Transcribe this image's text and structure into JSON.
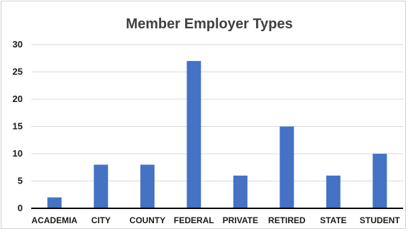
{
  "chart_data": {
    "type": "bar",
    "title": "Member Employer Types",
    "xlabel": "",
    "ylabel": "",
    "categories": [
      "ACADEMIA",
      "CITY",
      "COUNTY",
      "FEDERAL",
      "PRIVATE",
      "RETIRED",
      "STATE",
      "STUDENT"
    ],
    "values": [
      2,
      8,
      8,
      27,
      6,
      15,
      6,
      10
    ],
    "ylim": [
      0,
      30
    ],
    "yticks": [
      "0",
      "5",
      "10",
      "15",
      "20",
      "25",
      "30"
    ],
    "grid": true,
    "legend": "none",
    "bar_color": "#4472c4",
    "gridline_color": "#d9d9d9",
    "axis_color": "#000000"
  }
}
